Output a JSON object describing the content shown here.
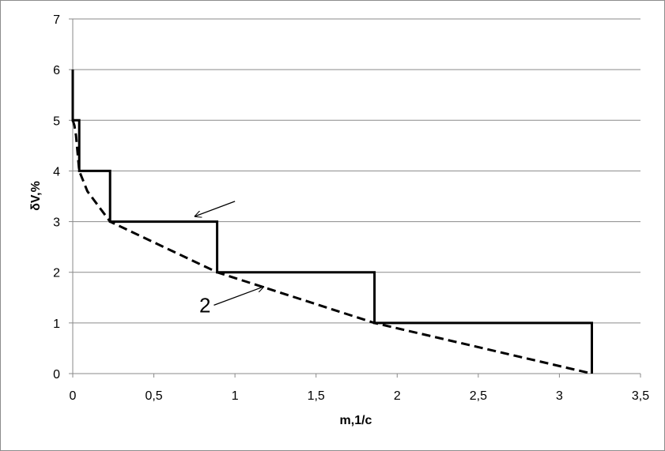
{
  "chart_data": {
    "type": "line",
    "title": "",
    "xlabel": "m,1/c",
    "ylabel": "δV,%",
    "xlim": [
      0,
      3.5
    ],
    "ylim": [
      0,
      7
    ],
    "grid": "horizontal",
    "x_ticks": [
      "0",
      "0,5",
      "1",
      "1,5",
      "2",
      "2,5",
      "3",
      "3,5"
    ],
    "y_ticks": [
      "0",
      "1",
      "2",
      "3",
      "4",
      "5",
      "6",
      "7"
    ],
    "series": [
      {
        "style": "solid",
        "color": "#000000",
        "x": [
          0.0,
          0.0,
          0.04,
          0.04,
          0.23,
          0.23,
          0.89,
          0.89,
          1.86,
          1.86,
          3.2,
          3.2
        ],
        "y": [
          6.0,
          5.0,
          5.0,
          4.0,
          4.0,
          3.0,
          3.0,
          2.0,
          2.0,
          1.0,
          1.0,
          0.0
        ]
      },
      {
        "style": "dashed",
        "color": "#000000",
        "x": [
          0.0,
          0.01,
          0.02,
          0.04,
          0.09,
          0.16,
          0.23,
          0.89,
          1.86,
          3.2
        ],
        "y": [
          5.0,
          4.9,
          4.7,
          4.0,
          3.6,
          3.3,
          3.0,
          2.0,
          1.0,
          0.0
        ]
      }
    ],
    "annotations": [
      {
        "text": "",
        "arrow_from": [
          1.0,
          3.4
        ],
        "arrow_to": [
          0.75,
          3.1
        ]
      },
      {
        "text": "2",
        "arrow_from": [
          0.87,
          1.35
        ],
        "arrow_to": [
          1.18,
          1.72
        ]
      }
    ]
  }
}
